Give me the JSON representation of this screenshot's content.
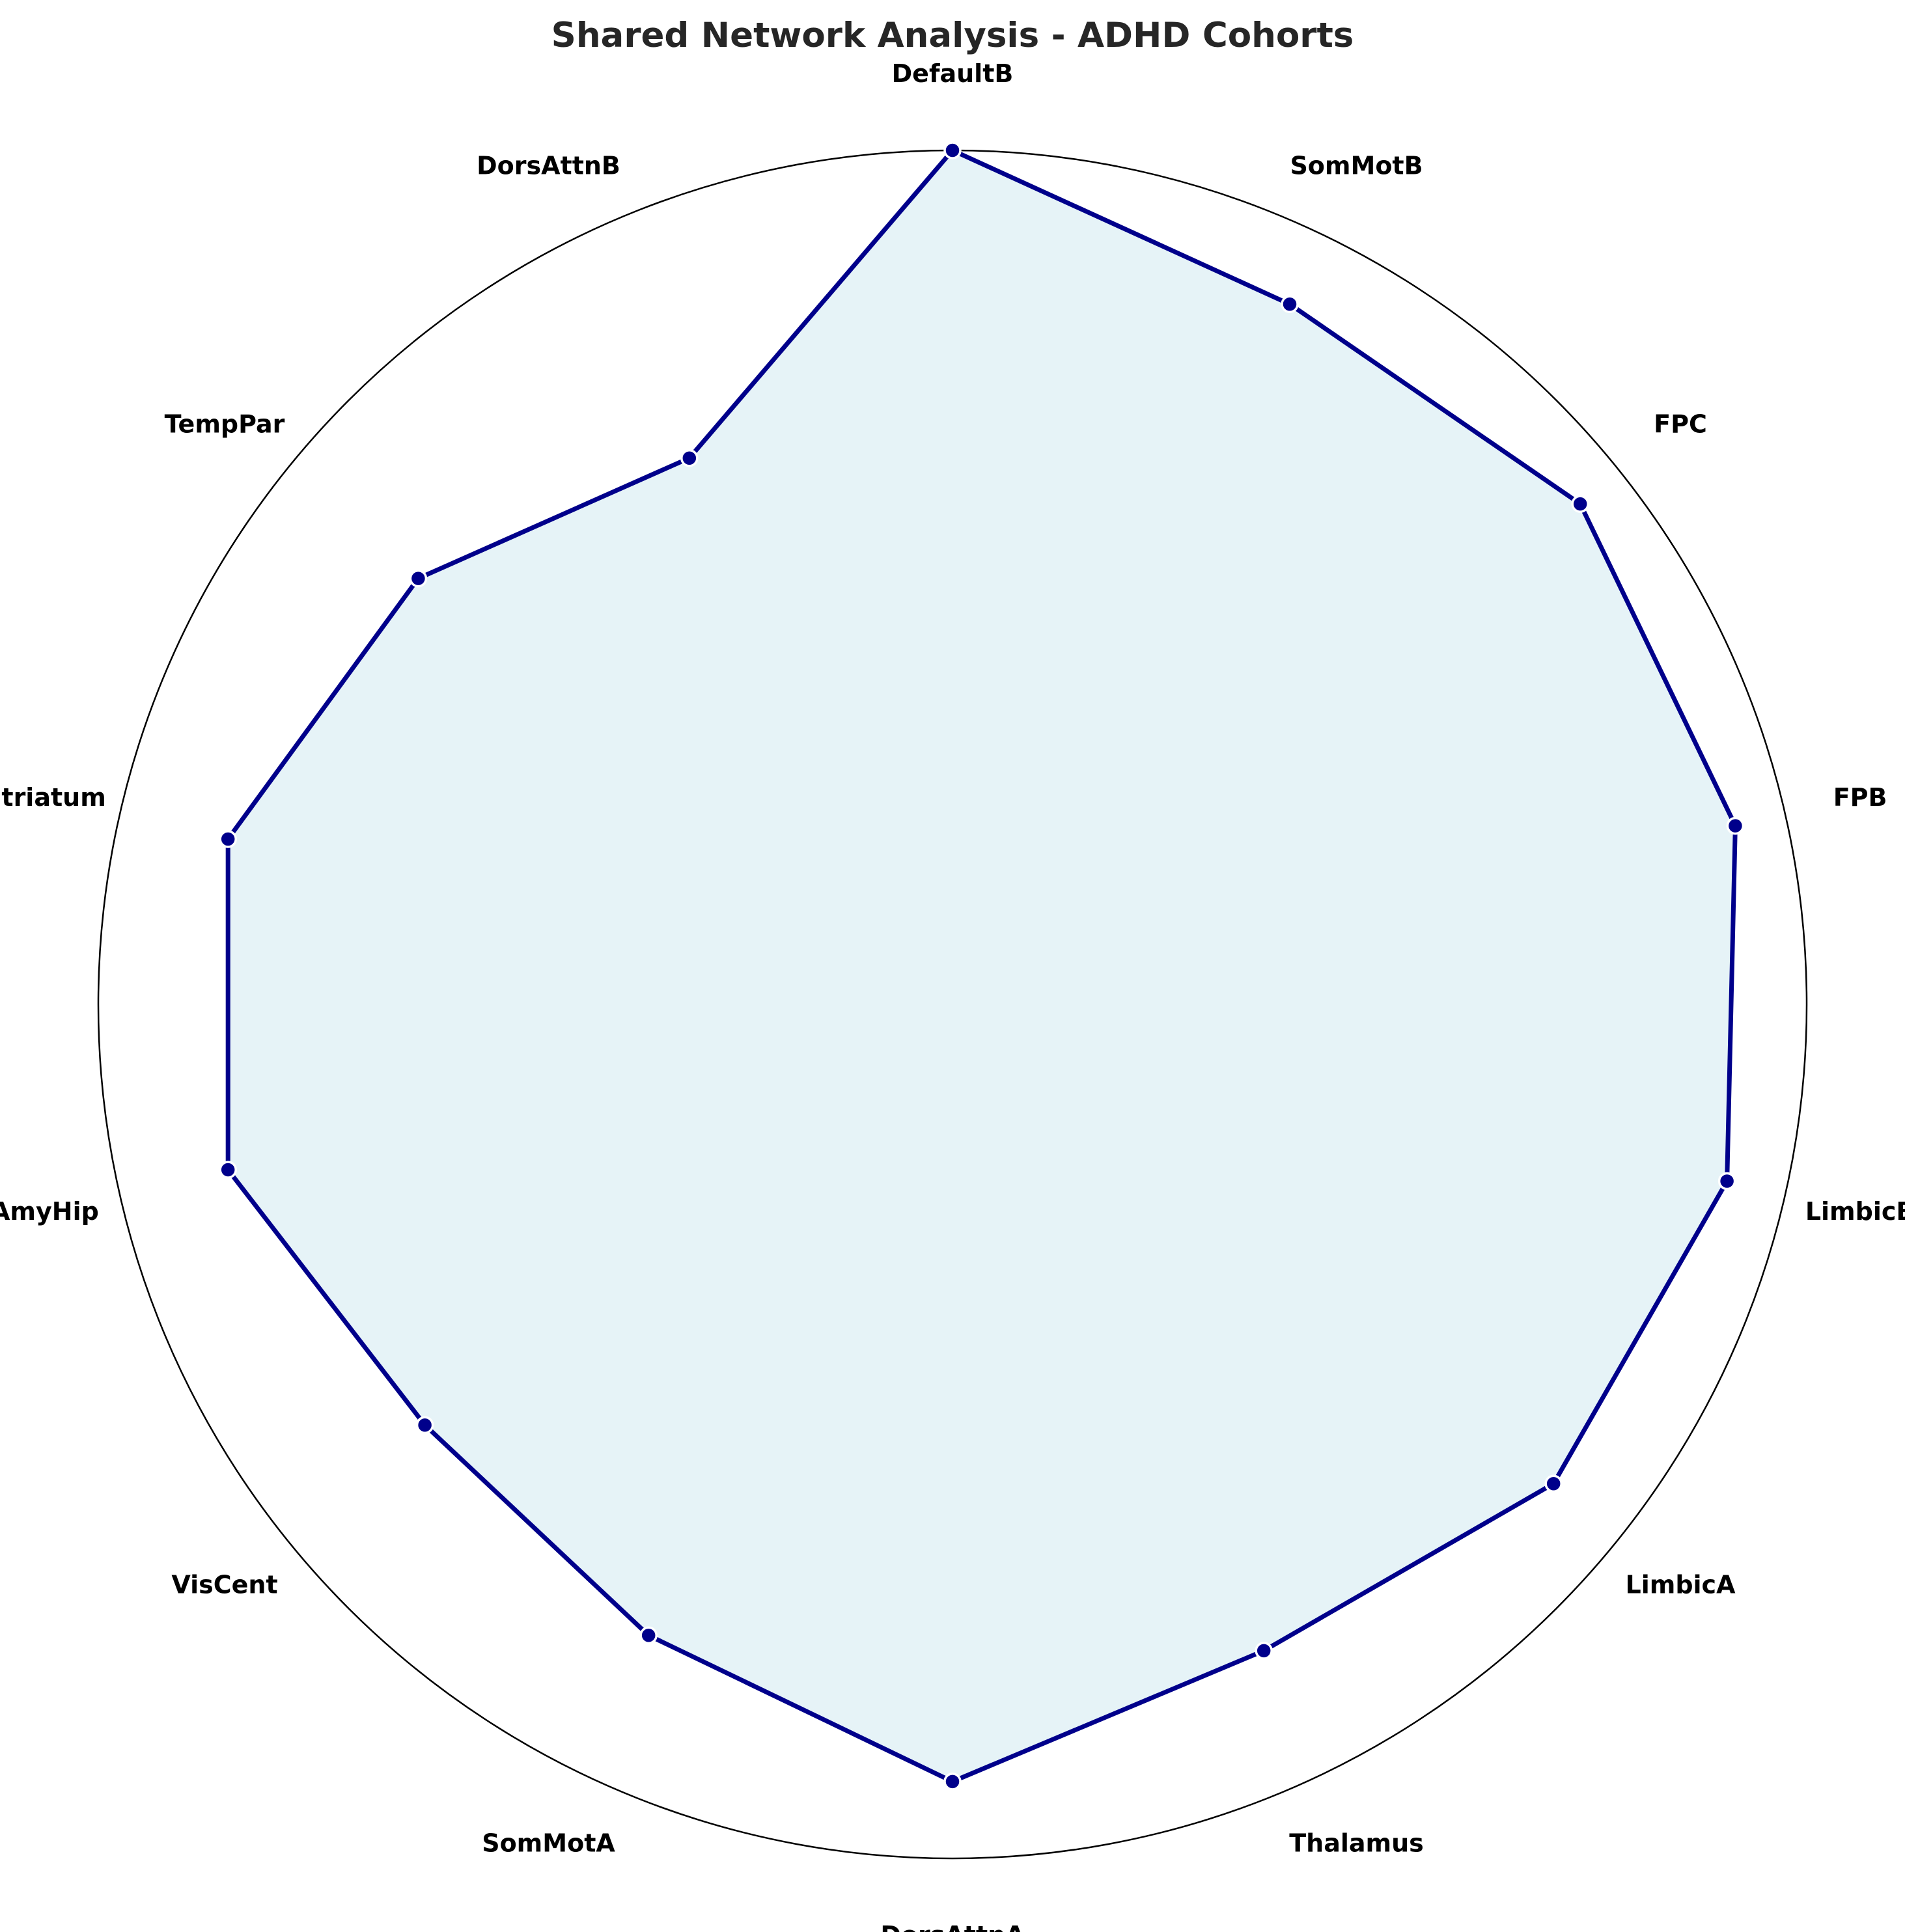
{
  "chart_data": {
    "type": "radar",
    "title": "Shared Network Analysis - ADHD Cohorts",
    "categories": [
      "DefaultB",
      "SomMotB",
      "FPC",
      "FPB",
      "LimbicB",
      "LimbicA",
      "Thalamus",
      "DorsAttnA",
      "SomMotA",
      "VisCent",
      "AmyHip",
      "Striatum",
      "TempPar",
      "DorsAttnB"
    ],
    "series": [
      {
        "values": [
          1.0,
          0.91,
          0.94,
          0.94,
          0.93,
          0.9,
          0.84,
          0.91,
          0.82,
          0.79,
          0.87,
          0.87,
          0.8,
          0.71
        ]
      }
    ],
    "rlim": [
      0,
      1
    ],
    "grid": false,
    "colors": {
      "line": "#00008b",
      "marker_fill": "#00008b",
      "marker_edge": "#ffffff",
      "area_fill": "#add8e6",
      "frame": "#000000"
    }
  }
}
